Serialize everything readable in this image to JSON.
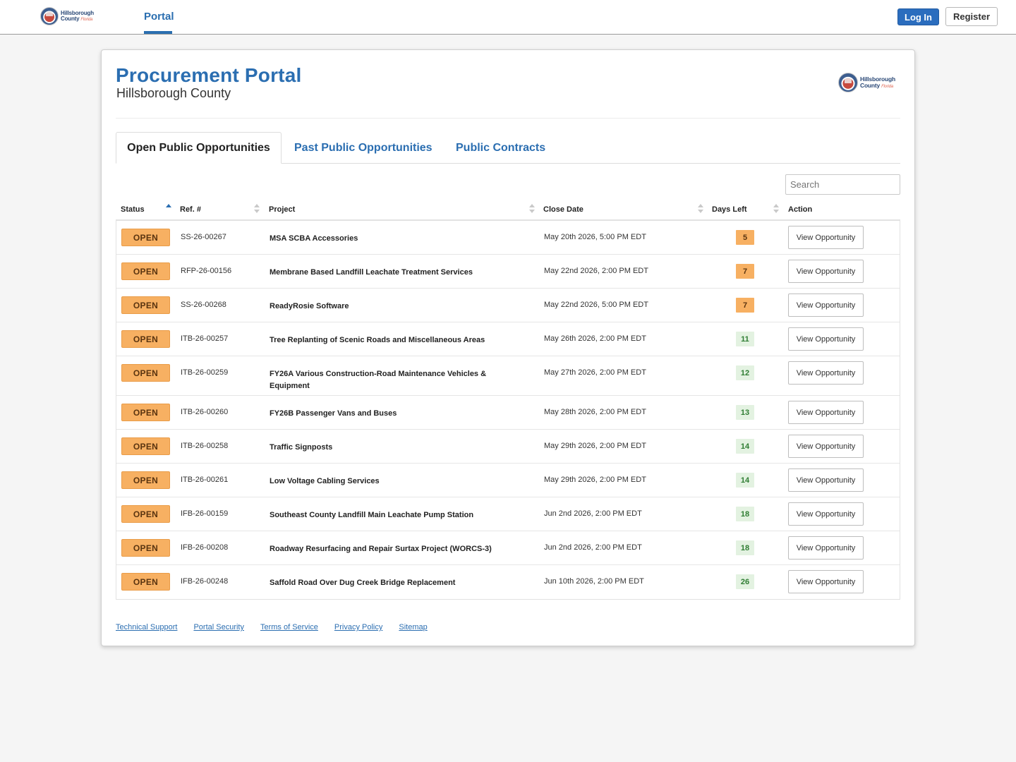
{
  "header": {
    "logo_line1": "Hillsborough",
    "logo_line2": "County",
    "logo_line2_suffix": "Florida",
    "nav_portal": "Portal",
    "login_label": "Log In",
    "register_label": "Register"
  },
  "page": {
    "title": "Procurement Portal",
    "subtitle": "Hillsborough County"
  },
  "tabs": [
    {
      "label": "Open Public Opportunities",
      "active": true
    },
    {
      "label": "Past Public Opportunities",
      "active": false
    },
    {
      "label": "Public Contracts",
      "active": false
    }
  ],
  "search": {
    "placeholder": "Search",
    "value": ""
  },
  "table": {
    "columns": [
      "Status",
      "Ref. #",
      "Project",
      "Close Date",
      "Days Left",
      "Action"
    ],
    "rows": [
      {
        "status": "OPEN",
        "ref": "SS-26-00267",
        "project": "MSA SCBA Accessories",
        "close": "May 20th 2026, 5:00 PM EDT",
        "days": "5",
        "level": "warn",
        "action": "View Opportunity"
      },
      {
        "status": "OPEN",
        "ref": "RFP-26-00156",
        "project": "Membrane Based Landfill Leachate Treatment Services",
        "close": "May 22nd 2026, 2:00 PM EDT",
        "days": "7",
        "level": "warn",
        "action": "View Opportunity"
      },
      {
        "status": "OPEN",
        "ref": "SS-26-00268",
        "project": "ReadyRosie Software",
        "close": "May 22nd 2026, 5:00 PM EDT",
        "days": "7",
        "level": "warn",
        "action": "View Opportunity"
      },
      {
        "status": "OPEN",
        "ref": "ITB-26-00257",
        "project": "Tree Replanting of Scenic Roads and Miscellaneous Areas",
        "close": "May 26th 2026, 2:00 PM EDT",
        "days": "11",
        "level": "ok",
        "action": "View Opportunity"
      },
      {
        "status": "OPEN",
        "ref": "ITB-26-00259",
        "project": "FY26A Various Construction-Road Maintenance Vehicles & Equipment",
        "close": "May 27th 2026, 2:00 PM EDT",
        "days": "12",
        "level": "ok",
        "action": "View Opportunity",
        "tall": true
      },
      {
        "status": "OPEN",
        "ref": "ITB-26-00260",
        "project": "FY26B Passenger Vans and Buses",
        "close": "May 28th 2026, 2:00 PM EDT",
        "days": "13",
        "level": "ok",
        "action": "View Opportunity"
      },
      {
        "status": "OPEN",
        "ref": "ITB-26-00258",
        "project": "Traffic Signposts",
        "close": "May 29th 2026, 2:00 PM EDT",
        "days": "14",
        "level": "ok",
        "action": "View Opportunity"
      },
      {
        "status": "OPEN",
        "ref": "ITB-26-00261",
        "project": "Low Voltage Cabling Services",
        "close": "May 29th 2026, 2:00 PM EDT",
        "days": "14",
        "level": "ok",
        "action": "View Opportunity"
      },
      {
        "status": "OPEN",
        "ref": "IFB-26-00159",
        "project": "Southeast County Landfill Main Leachate Pump Station",
        "close": "Jun 2nd 2026, 2:00 PM EDT",
        "days": "18",
        "level": "ok",
        "action": "View Opportunity"
      },
      {
        "status": "OPEN",
        "ref": "IFB-26-00208",
        "project": "Roadway Resurfacing and Repair Surtax Project (WORCS-3)",
        "close": "Jun 2nd 2026, 2:00 PM EDT",
        "days": "18",
        "level": "ok",
        "action": "View Opportunity"
      },
      {
        "status": "OPEN",
        "ref": "IFB-26-00248",
        "project": "Saffold Road Over Dug Creek Bridge Replacement",
        "close": "Jun 10th 2026, 2:00 PM EDT",
        "days": "26",
        "level": "ok",
        "action": "View Opportunity"
      }
    ]
  },
  "footer": {
    "links": [
      "Technical Support",
      "Portal Security",
      "Terms of Service",
      "Privacy Policy",
      "Sitemap"
    ]
  },
  "colors": {
    "brand_blue": "#2b6eb1",
    "open_badge": "#f7b062",
    "days_ok": "#e3f2e1",
    "days_ok_text": "#2f7d33"
  }
}
